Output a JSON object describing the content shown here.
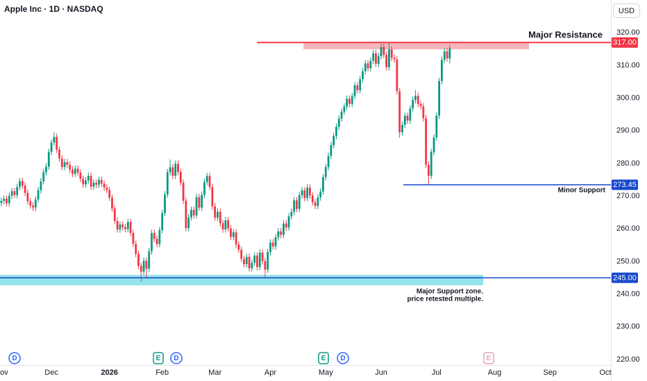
{
  "chart_data": {
    "type": "candlestick",
    "title": "Apple Inc · 1D · NASDAQ",
    "currency": "USD",
    "up_color": "#089981",
    "down_color": "#f23645",
    "grid": false,
    "ylim": [
      218.3,
      330
    ],
    "yticks": [
      {
        "value": 220,
        "label": "220.00"
      },
      {
        "value": 230,
        "label": "230.00"
      },
      {
        "value": 240,
        "label": "240.00"
      },
      {
        "value": 250,
        "label": "250.00"
      },
      {
        "value": 260,
        "label": "260.00"
      },
      {
        "value": 270,
        "label": "270.00"
      },
      {
        "value": 280,
        "label": "280.00"
      },
      {
        "value": 290,
        "label": "290.00"
      },
      {
        "value": 300,
        "label": "300.00"
      },
      {
        "value": 310,
        "label": "310.00"
      },
      {
        "value": 320,
        "label": "320.00"
      }
    ],
    "xlim": [
      -0.5,
      231.1
    ],
    "xticks": [
      {
        "value": 0,
        "label": "Nov"
      },
      {
        "value": 19,
        "label": "Dec"
      },
      {
        "value": 41,
        "label": "2026"
      },
      {
        "value": 61,
        "label": "Feb"
      },
      {
        "value": 81,
        "label": "Mar"
      },
      {
        "value": 102,
        "label": "Apr"
      },
      {
        "value": 123,
        "label": "May"
      },
      {
        "value": 144,
        "label": "Jun"
      },
      {
        "value": 165,
        "label": "Jul"
      },
      {
        "value": 187,
        "label": "Aug"
      },
      {
        "value": 208,
        "label": "Sep"
      },
      {
        "value": 229,
        "label": "Oct"
      }
    ],
    "open": [
      267.9,
      268.5,
      269.2,
      267.8,
      270.1,
      271.5,
      270.3,
      272.8,
      274.6,
      273.2,
      271.0,
      268.4,
      267.1,
      266.5,
      269.0,
      271.8,
      274.5,
      277.3,
      279.0,
      283.5,
      286.4,
      288.1,
      284.2,
      281.5,
      278.9,
      280.4,
      279.6,
      278.1,
      276.8,
      278.4,
      277.2,
      275.3,
      273.6,
      274.8,
      276.2,
      272.9,
      274.1,
      273.5,
      275.0,
      273.8,
      272.6,
      271.9,
      269.5,
      266.2,
      262.4,
      259.8,
      261.3,
      260.5,
      259.9,
      262.1,
      258.7,
      255.4,
      252.3,
      248.6,
      246.9,
      250.2,
      247.8,
      253.1,
      258.7,
      256.9,
      255.3,
      259.6,
      264.8,
      270.5,
      277.3,
      278.8,
      276.2,
      279.9,
      277.4,
      274.1,
      268.6,
      260.2,
      263.5,
      265.8,
      264.1,
      269.7,
      266.5,
      270.4,
      274.3,
      276.1,
      272.8,
      266.9,
      263.4,
      265.2,
      261.7,
      259.8,
      262.6,
      260.1,
      257.5,
      258.9,
      255.2,
      253.6,
      250.8,
      249.2,
      251.4,
      247.9,
      249.6,
      251.8,
      248.3,
      252.7,
      250.1,
      247.5,
      252.9,
      255.8,
      254.6,
      257.4,
      259.2,
      258.1,
      261.6,
      260.4,
      263.8,
      265.2,
      268.7,
      266.1,
      270.3,
      271.8,
      269.4,
      272.6,
      270.2,
      268.1,
      267.0,
      269.6,
      271.4,
      275.8,
      278.9,
      282.3,
      285.6,
      288.4,
      291.2,
      293.7,
      295.8,
      297.4,
      299.8,
      298.2,
      300.6,
      303.9,
      302.4,
      305.8,
      308.2,
      310.6,
      309.1,
      311.4,
      313.7,
      310.5,
      312.8,
      315.6,
      313.2,
      309.4,
      314.9,
      312.3,
      311.8,
      302.1,
      289.5,
      291.8,
      294.6,
      293.1,
      296.8,
      299.4,
      300.7,
      298.2,
      297.5,
      293.8,
      279.6,
      276.2,
      283.5,
      287.9,
      294.6,
      305.2,
      311.7,
      314.3,
      312.1
    ],
    "high": [
      269.5,
      270.2,
      270.2,
      271.1,
      272.5,
      272.5,
      273.8,
      275.6,
      275.6,
      274.2,
      272.0,
      269.4,
      268.1,
      270.0,
      272.8,
      275.5,
      278.3,
      280.0,
      284.5,
      287.4,
      289.5,
      289.1,
      285.2,
      282.5,
      281.4,
      281.4,
      280.6,
      279.1,
      279.4,
      279.4,
      278.2,
      276.3,
      275.8,
      277.2,
      277.2,
      275.1,
      275.1,
      276.0,
      276.0,
      274.8,
      273.6,
      272.9,
      270.5,
      267.2,
      263.4,
      262.3,
      262.3,
      261.5,
      263.1,
      263.1,
      259.7,
      256.4,
      253.3,
      249.6,
      251.2,
      251.2,
      254.1,
      259.7,
      259.7,
      257.9,
      260.6,
      265.8,
      271.5,
      278.3,
      281.2,
      279.8,
      280.9,
      280.9,
      278.4,
      275.1,
      269.6,
      264.5,
      266.8,
      266.8,
      270.7,
      270.7,
      271.4,
      275.3,
      277.1,
      277.1,
      273.8,
      267.9,
      266.2,
      266.2,
      262.7,
      263.6,
      263.6,
      261.1,
      259.9,
      259.9,
      256.2,
      254.6,
      251.8,
      252.4,
      252.4,
      250.6,
      252.8,
      252.8,
      253.7,
      253.7,
      251.1,
      253.9,
      256.8,
      256.8,
      258.4,
      260.2,
      260.2,
      262.6,
      262.6,
      264.8,
      266.2,
      269.7,
      269.7,
      271.3,
      272.8,
      272.8,
      273.6,
      273.6,
      271.2,
      269.1,
      270.6,
      272.4,
      276.8,
      279.9,
      283.3,
      286.6,
      289.4,
      292.2,
      294.7,
      296.8,
      298.4,
      300.8,
      300.8,
      301.6,
      304.9,
      304.9,
      306.8,
      309.2,
      311.6,
      311.6,
      312.4,
      314.7,
      314.7,
      313.8,
      316.6,
      316.6,
      314.2,
      317.0,
      315.9,
      313.3,
      312.8,
      303.1,
      292.8,
      295.6,
      295.6,
      297.8,
      300.4,
      302.4,
      301.7,
      299.2,
      298.5,
      294.8,
      280.6,
      284.5,
      288.9,
      295.6,
      306.2,
      312.7,
      315.3,
      315.3,
      316.2
    ],
    "low": [
      266.9,
      267.5,
      266.8,
      266.8,
      269.1,
      269.3,
      269.3,
      271.8,
      272.2,
      270.0,
      267.4,
      266.1,
      265.5,
      265.5,
      268.0,
      270.8,
      273.5,
      276.3,
      278.0,
      282.5,
      285.4,
      283.2,
      280.5,
      277.9,
      277.9,
      278.6,
      277.1,
      275.8,
      275.8,
      276.2,
      274.3,
      272.6,
      272.6,
      273.8,
      271.9,
      271.9,
      272.5,
      272.5,
      272.8,
      271.6,
      270.9,
      268.5,
      265.2,
      261.4,
      258.8,
      258.8,
      259.5,
      258.9,
      258.9,
      257.7,
      254.4,
      251.3,
      247.6,
      243.8,
      245.9,
      245.2,
      246.8,
      252.1,
      255.9,
      254.3,
      254.3,
      258.6,
      263.8,
      269.5,
      276.3,
      275.2,
      275.2,
      276.4,
      273.1,
      267.6,
      259.2,
      259.2,
      262.5,
      263.1,
      263.1,
      265.5,
      265.5,
      269.4,
      273.3,
      271.8,
      265.9,
      262.4,
      262.4,
      260.7,
      258.8,
      258.8,
      259.1,
      256.5,
      256.5,
      254.2,
      252.6,
      249.8,
      248.2,
      248.2,
      246.9,
      246.9,
      248.6,
      247.3,
      247.3,
      249.1,
      245.2,
      246.5,
      251.9,
      253.6,
      253.6,
      256.4,
      257.1,
      257.1,
      259.4,
      259.4,
      262.8,
      264.2,
      265.1,
      265.1,
      269.3,
      268.4,
      268.4,
      269.2,
      267.1,
      266.0,
      266.0,
      268.6,
      270.4,
      274.8,
      277.9,
      281.3,
      284.6,
      287.4,
      290.2,
      292.7,
      294.8,
      296.4,
      297.2,
      297.2,
      299.6,
      301.4,
      301.4,
      304.8,
      307.2,
      308.1,
      308.1,
      310.4,
      309.5,
      309.5,
      311.8,
      312.2,
      308.4,
      308.4,
      311.3,
      310.8,
      301.1,
      287.8,
      288.5,
      290.8,
      292.1,
      292.1,
      295.8,
      298.4,
      297.2,
      296.5,
      292.8,
      278.6,
      273.45,
      275.2,
      282.5,
      286.9,
      293.6,
      304.2,
      310.7,
      311.1,
      310.6
    ],
    "close": [
      268.5,
      269.2,
      267.8,
      270.1,
      271.5,
      270.3,
      272.8,
      274.6,
      273.2,
      271.0,
      268.4,
      267.1,
      266.5,
      269.0,
      271.8,
      274.5,
      277.3,
      279.0,
      283.5,
      286.4,
      288.1,
      284.2,
      281.5,
      278.9,
      280.4,
      279.6,
      278.1,
      276.8,
      278.4,
      277.2,
      275.3,
      273.6,
      274.8,
      276.2,
      272.9,
      274.1,
      273.5,
      275.0,
      273.8,
      272.6,
      271.9,
      269.5,
      266.2,
      262.4,
      259.8,
      261.3,
      260.5,
      259.9,
      262.1,
      258.7,
      255.4,
      252.3,
      248.6,
      246.9,
      250.2,
      247.8,
      253.1,
      258.7,
      256.9,
      255.3,
      259.6,
      264.8,
      270.5,
      277.3,
      278.8,
      276.2,
      279.9,
      277.4,
      274.1,
      268.6,
      260.2,
      263.5,
      265.8,
      264.1,
      269.7,
      266.5,
      270.4,
      274.3,
      276.1,
      272.8,
      266.9,
      263.4,
      265.2,
      261.7,
      259.8,
      262.6,
      260.1,
      257.5,
      258.9,
      255.2,
      253.6,
      250.8,
      249.2,
      251.4,
      247.9,
      249.6,
      251.8,
      248.3,
      252.7,
      250.1,
      247.5,
      252.9,
      255.8,
      254.6,
      257.4,
      259.2,
      258.1,
      261.6,
      260.4,
      263.8,
      265.2,
      268.7,
      266.1,
      270.3,
      271.8,
      269.4,
      272.6,
      270.2,
      268.1,
      267.0,
      269.6,
      271.4,
      275.8,
      278.9,
      282.3,
      285.6,
      288.4,
      291.2,
      293.7,
      295.8,
      297.4,
      299.8,
      298.2,
      300.6,
      303.9,
      302.4,
      305.8,
      308.2,
      310.6,
      309.1,
      311.4,
      313.7,
      310.5,
      312.8,
      315.6,
      313.2,
      309.4,
      314.9,
      312.3,
      311.8,
      302.1,
      289.5,
      291.8,
      294.6,
      293.1,
      296.8,
      299.4,
      300.7,
      298.2,
      297.5,
      293.8,
      279.6,
      276.2,
      283.5,
      287.9,
      294.6,
      305.2,
      311.7,
      314.3,
      312.1,
      315.2
    ],
    "zones": [
      {
        "range": [
          314.9,
          317.2
        ],
        "color": "#f7a9b0"
      },
      {
        "range": [
          242.7,
          245.9
        ],
        "color": "#80deea"
      }
    ],
    "levels": [
      {
        "name": "Major Resistance",
        "value": 317,
        "value_label": "317.00",
        "color": "#f23645"
      },
      {
        "name": "Minor Support",
        "value": 273.45,
        "value_label": "273.45",
        "color": "#1848cc"
      },
      {
        "name": "Major Support zone.",
        "note": "price retested multiple.",
        "value": 245,
        "value_label": "245.00",
        "color": "#1848cc"
      }
    ],
    "events": [
      "D",
      "E",
      "D",
      "E",
      "D",
      "E"
    ]
  }
}
